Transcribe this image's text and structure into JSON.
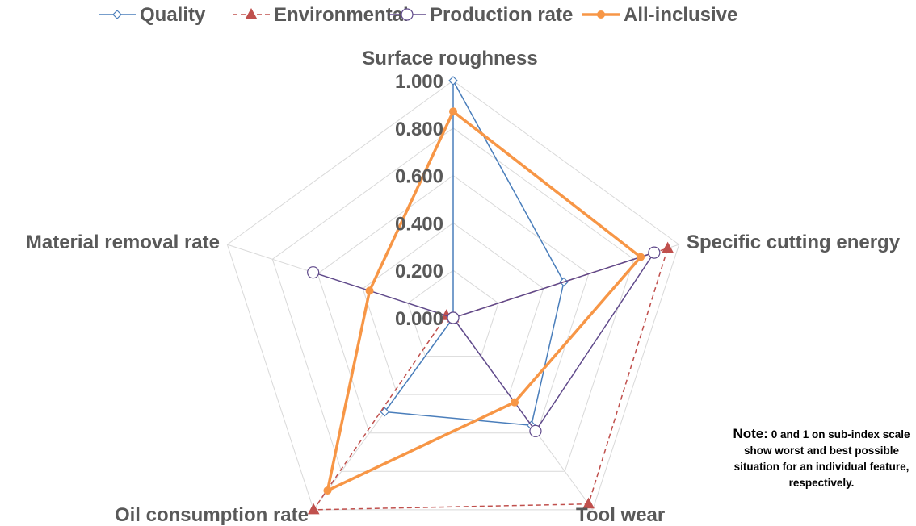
{
  "chart_data": {
    "type": "radar",
    "axes": [
      "Surface roughness",
      "Specific cutting energy",
      "Tool wear",
      "Oil consumption rate",
      "Material removal rate"
    ],
    "ticks": [
      "0.000",
      "0.200",
      "0.400",
      "0.600",
      "0.800",
      "1.000"
    ],
    "range": [
      0,
      1
    ],
    "grid": true,
    "legend_position": "top",
    "series": [
      {
        "name": "Quality",
        "color": "#4a7ebb",
        "marker": "diamond-open",
        "line": "solid",
        "values": [
          1.0,
          0.49,
          0.56,
          0.49,
          0.0
        ]
      },
      {
        "name": "Environmental",
        "color": "#c0504d",
        "marker": "triangle",
        "line": "dashed",
        "values": [
          0.0,
          0.95,
          0.97,
          1.0,
          0.03
        ]
      },
      {
        "name": "Production rate",
        "color": "#604a8b",
        "marker": "circle-open",
        "line": "solid",
        "values": [
          0.0,
          0.89,
          0.59,
          0.0,
          0.62
        ]
      },
      {
        "name": "All-inclusive",
        "color": "#f79646",
        "marker": "circle",
        "line": "solid",
        "values": [
          0.87,
          0.83,
          0.44,
          0.9,
          0.37
        ]
      }
    ]
  },
  "note": {
    "head": "Note:",
    "text": "0 and 1 on sub-index scale show worst and best possible situation for an individual feature, respectively."
  }
}
